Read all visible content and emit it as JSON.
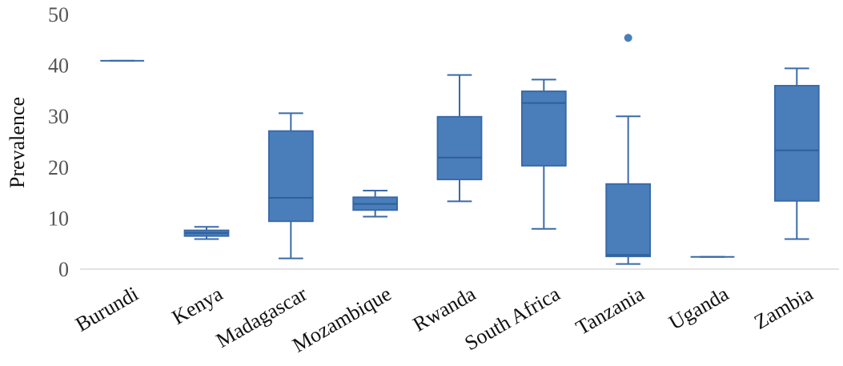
{
  "chart_data": {
    "type": "box",
    "ylabel": "Prevalence",
    "ylim": [
      0,
      50
    ],
    "yticks": [
      0,
      10,
      20,
      30,
      40,
      50
    ],
    "categories": [
      "Burundi",
      "Kenya",
      "Madagascar",
      "Mozambique",
      "Rwanda",
      "South Africa",
      "Tanzania",
      "Uganda",
      "Zambia"
    ],
    "boxes": [
      {
        "category": "Burundi",
        "min": 40.9,
        "q1": 40.9,
        "median": 40.9,
        "q3": 40.9,
        "max": 40.9,
        "outliers": []
      },
      {
        "category": "Kenya",
        "min": 5.9,
        "q1": 6.5,
        "median": 7.1,
        "q3": 7.6,
        "max": 8.3,
        "outliers": []
      },
      {
        "category": "Madagascar",
        "min": 2.1,
        "q1": 9.4,
        "median": 14.0,
        "q3": 27.1,
        "max": 30.6,
        "outliers": []
      },
      {
        "category": "Mozambique",
        "min": 10.3,
        "q1": 11.6,
        "median": 12.8,
        "q3": 14.1,
        "max": 15.4,
        "outliers": []
      },
      {
        "category": "Rwanda",
        "min": 13.3,
        "q1": 17.6,
        "median": 21.9,
        "q3": 29.9,
        "max": 38.1,
        "outliers": []
      },
      {
        "category": "South Africa",
        "min": 7.9,
        "q1": 20.3,
        "median": 32.6,
        "q3": 34.9,
        "max": 37.2,
        "outliers": []
      },
      {
        "category": "Tanzania",
        "min": 1.0,
        "q1": 2.5,
        "median": 2.8,
        "q3": 16.7,
        "max": 30.0,
        "outliers": [
          45.4
        ]
      },
      {
        "category": "Uganda",
        "min": 2.4,
        "q1": 2.4,
        "median": 2.4,
        "q3": 2.4,
        "max": 2.4,
        "outliers": []
      },
      {
        "category": "Zambia",
        "min": 5.9,
        "q1": 13.4,
        "median": 23.3,
        "q3": 36.0,
        "max": 39.4,
        "outliers": []
      }
    ],
    "colors": {
      "fill": "#4a7ebb",
      "stroke": "#3a6aa8",
      "median": "#2f5f99"
    },
    "grid": false,
    "legend": "none"
  }
}
